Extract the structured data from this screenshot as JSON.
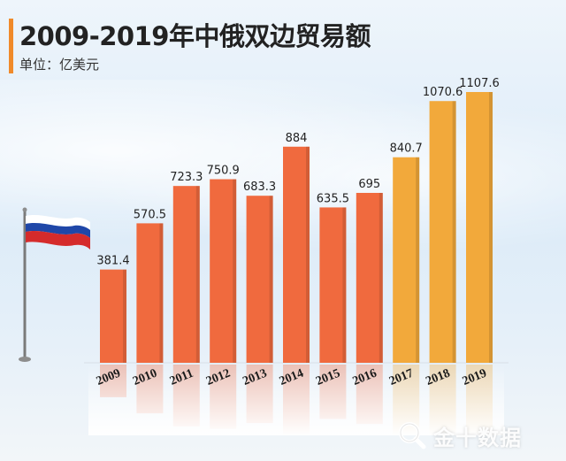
{
  "header": {
    "title": "2009-2019年中俄双边贸易额",
    "subtitle": "单位：亿美元"
  },
  "watermark": {
    "text": "金十数据",
    "icon": "search-magnifier-icon"
  },
  "colors": {
    "accent": "#f08a2a",
    "bar_early": "#f06a3e",
    "bar_late": "#f2a93b",
    "flag_white": "#ffffff",
    "flag_blue": "#1f47a8",
    "flag_red": "#d52b2b"
  },
  "chart_data": {
    "type": "bar",
    "title": "2009-2019年中俄双边贸易额",
    "ylabel": "单位：亿美元",
    "xlabel": "",
    "categories": [
      "2009",
      "2010",
      "2011",
      "2012",
      "2013",
      "2014",
      "2015",
      "2016",
      "2017",
      "2018",
      "2019"
    ],
    "values": [
      381.4,
      570.5,
      723.3,
      750.9,
      683.3,
      884,
      635.5,
      695,
      840.7,
      1070.6,
      1107.6
    ],
    "value_labels": [
      "381.4",
      "570.5",
      "723.3",
      "750.9",
      "683.3",
      "884",
      "635.5",
      "695",
      "840.7",
      "1070.6",
      "1107.6"
    ],
    "highlight_from_index": 8,
    "ylim": [
      0,
      1107.6
    ],
    "grid": false,
    "legend": "none"
  }
}
